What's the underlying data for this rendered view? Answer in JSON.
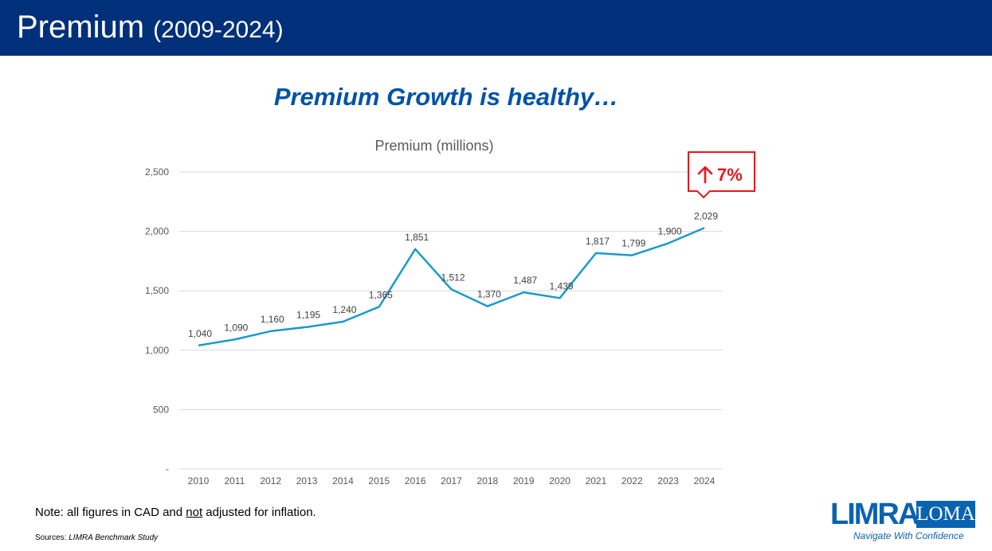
{
  "header": {
    "title": "Premium",
    "years": "(2009-2024)"
  },
  "subtitle": "Premium Growth is healthy…",
  "chart_data": {
    "type": "line",
    "title": "Premium (millions)",
    "categories": [
      "2010",
      "2011",
      "2012",
      "2013",
      "2014",
      "2015",
      "2016",
      "2017",
      "2018",
      "2019",
      "2020",
      "2021",
      "2022",
      "2023",
      "2024"
    ],
    "values": [
      1040,
      1090,
      1160,
      1195,
      1240,
      1365,
      1851,
      1512,
      1370,
      1487,
      1439,
      1817,
      1799,
      1900,
      2029
    ],
    "value_labels": [
      "1,040",
      "1,090",
      "1,160",
      "1,195",
      "1,240",
      "1,365",
      "1,851",
      "1,512",
      "1,370",
      "1,487",
      "1,439",
      "1,817",
      "1,799",
      "1,900",
      "2,029"
    ],
    "ylim": [
      0,
      2500
    ],
    "yticks": [
      0,
      500,
      1000,
      1500,
      2000,
      2500
    ],
    "ytick_labels": [
      "-",
      "500",
      "1,000",
      "1,500",
      "2,000",
      "2,500"
    ],
    "grid": true,
    "line_color": "#1a9bc9",
    "callout": {
      "arrow": "up-arrow-icon",
      "text": "7%",
      "color": "#e8171e"
    }
  },
  "note": {
    "prefix": "Note: all figures in CAD and ",
    "emphasis": "not",
    "suffix": " adjusted for inflation."
  },
  "sources": {
    "label": "Sources: ",
    "value": "LIMRA Benchmark Study"
  },
  "logo": {
    "primary": "LIMRA",
    "secondary": "LOMA",
    "tagline": "Navigate With Confidence"
  }
}
